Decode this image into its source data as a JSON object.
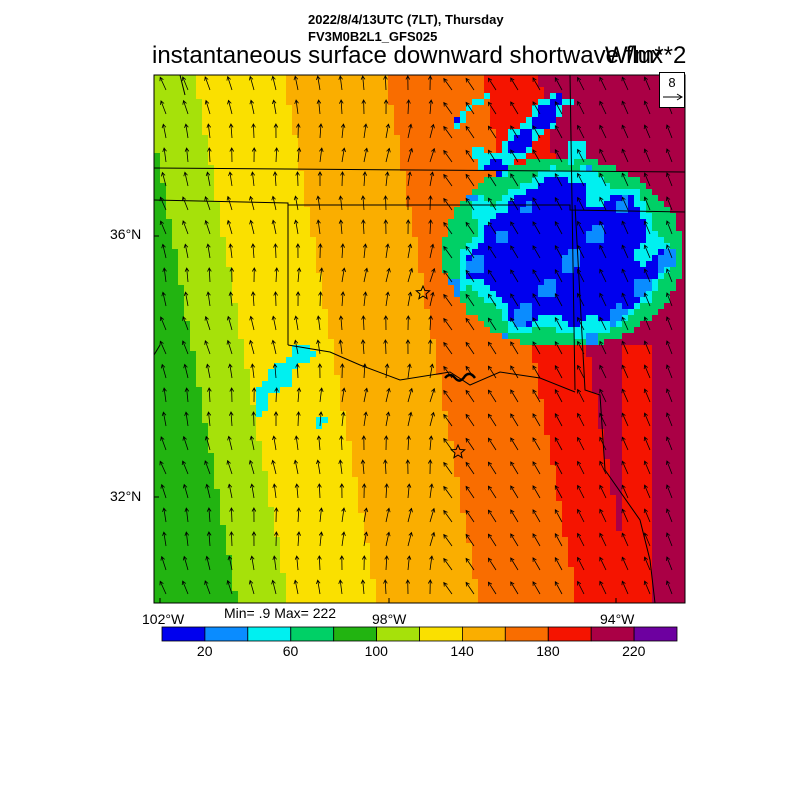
{
  "header": {
    "date_line": "2022/8/4/13UTC (7LT), Thursday",
    "model_line": "FV3M0B2L1_GFS025",
    "field_title": "instantaneous surface downward shortwave flux",
    "units": "W/m**2"
  },
  "axes": {
    "lat_labels": [
      "36°N",
      "32°N"
    ],
    "lon_labels": [
      "102°W",
      "98°W",
      "94°W"
    ]
  },
  "vector_ref": {
    "label": "8"
  },
  "stats": {
    "text": "Min= .9 Max= 222"
  },
  "colorbar": {
    "colors": [
      "#0000ee",
      "#0a8cff",
      "#00f0f0",
      "#00d066",
      "#22b411",
      "#a6e10a",
      "#fae000",
      "#faae00",
      "#f96d00",
      "#f51400",
      "#aa0045",
      "#6d00a0"
    ],
    "tick_labels": [
      "20",
      "60",
      "100",
      "140",
      "180",
      "220"
    ]
  },
  "markers": [
    {
      "name": "station-star-north"
    },
    {
      "name": "station-star-south"
    }
  ]
}
